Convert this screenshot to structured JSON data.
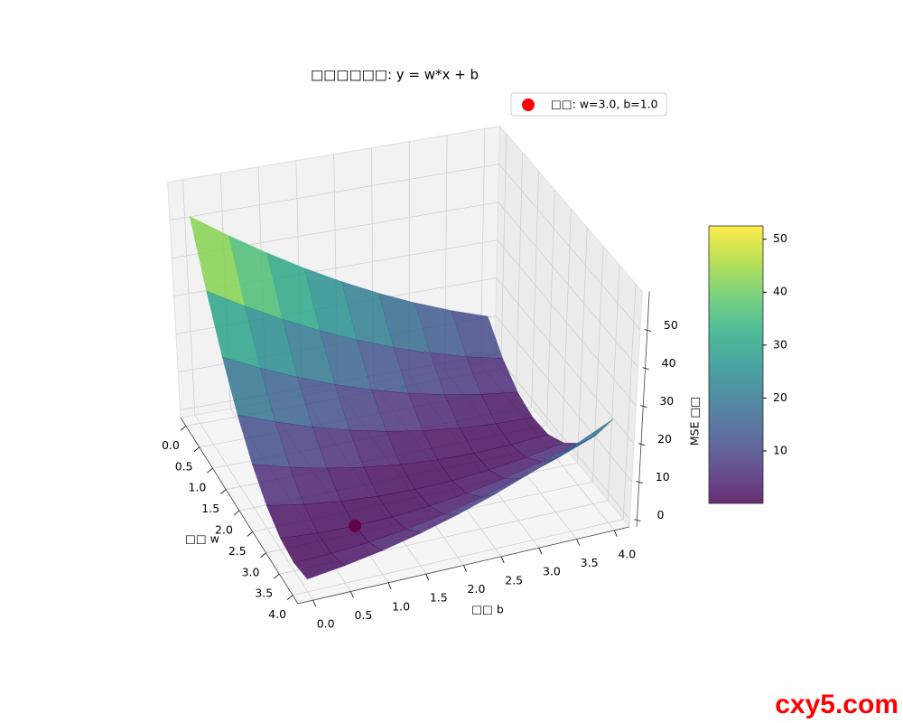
{
  "chart_data": {
    "type": "surface3d",
    "title": "□□□□□□: y = w*x + b",
    "xlabel": "□□ w",
    "ylabel": "□□ b",
    "zlabel": "MSE □□",
    "x": [
      0,
      0.5,
      1,
      1.5,
      2,
      2.5,
      3,
      3.5,
      4
    ],
    "y": [
      0,
      0.5,
      1,
      1.5,
      2,
      2.5,
      3,
      3.5,
      4
    ],
    "z": [
      [
        52.51,
        45.76,
        39.51,
        33.76,
        28.51,
        23.76,
        19.51,
        15.76,
        12.51
      ],
      [
        38.44,
        32.69,
        27.44,
        22.69,
        18.44,
        14.69,
        11.44,
        8.69,
        6.44
      ],
      [
        26.56,
        21.81,
        17.56,
        13.81,
        10.56,
        7.81,
        5.56,
        3.81,
        2.56
      ],
      [
        16.88,
        13.13,
        9.88,
        7.13,
        4.88,
        3.13,
        1.88,
        1.13,
        0.88
      ],
      [
        9.39,
        6.64,
        4.39,
        2.64,
        1.39,
        0.64,
        0.39,
        0.64,
        1.39
      ],
      [
        4.1,
        2.35,
        1.1,
        0.35,
        0.1,
        0.35,
        1.1,
        2.35,
        4.1
      ],
      [
        1,
        0.25,
        0,
        0.25,
        1,
        2.25,
        4,
        6.25,
        9
      ],
      [
        0.1,
        0.35,
        1.1,
        2.35,
        4.1,
        6.35,
        9.1,
        12.35,
        16.1
      ],
      [
        1.39,
        2.64,
        4.39,
        6.64,
        9.39,
        12.64,
        16.39,
        20.64,
        25.39
      ]
    ],
    "xlim": [
      -0.2,
      4.2
    ],
    "ylim": [
      -0.2,
      4.2
    ],
    "zlim": [
      -2,
      60
    ],
    "xticks": [
      {
        "value": 0,
        "label": "0.0"
      },
      0.5,
      {
        "value": 1,
        "label": "1.0"
      },
      1.5,
      {
        "value": 2,
        "label": "2.0"
      },
      2.5,
      {
        "value": 3,
        "label": "3.0"
      },
      3.5,
      {
        "value": 4,
        "label": "4.0"
      }
    ],
    "yticks": [
      {
        "value": 0,
        "label": "0.0"
      },
      0.5,
      {
        "value": 1,
        "label": "1.0"
      },
      1.5,
      {
        "value": 2,
        "label": "2.0"
      },
      2.5,
      {
        "value": 3,
        "label": "3.0"
      },
      3.5,
      {
        "value": 4,
        "label": "4.0"
      }
    ],
    "zticks": [
      0,
      10,
      20,
      30,
      40,
      50
    ],
    "colormap": "viridis",
    "colorbar": {
      "lim": [
        0.1,
        52.5
      ],
      "ticks": [
        10,
        20,
        30,
        40,
        50
      ]
    },
    "point": {
      "name": "□□: w=3.0, b=1.0",
      "color": "red",
      "x": 3.0,
      "y": 1.0,
      "z": 0
    },
    "grid": true
  },
  "watermark": "cxy5.com"
}
